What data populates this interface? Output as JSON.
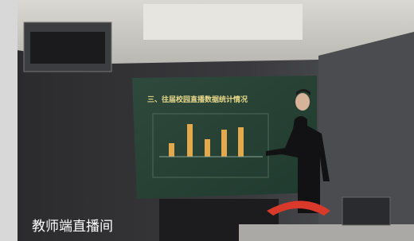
{
  "caption": "教师端直播间",
  "screen": {
    "title": "三、往届校园直播数据统计情况"
  }
}
